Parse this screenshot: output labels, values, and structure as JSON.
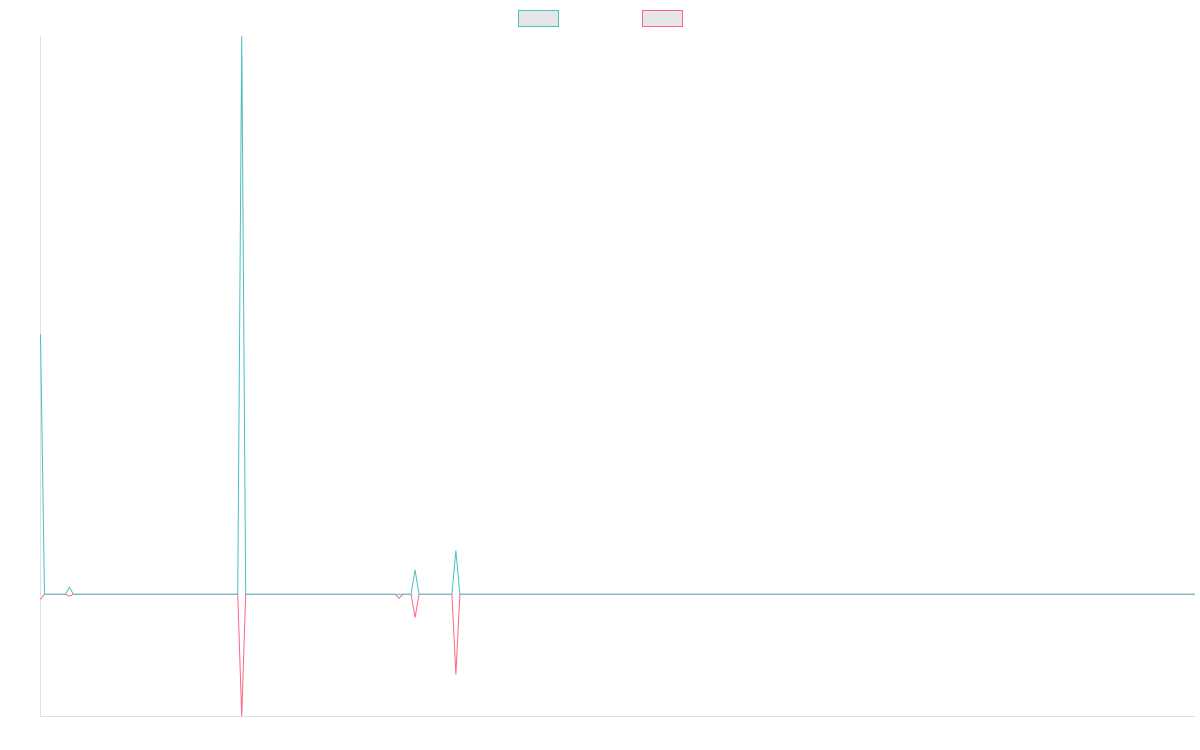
{
  "chart_data": {
    "type": "line",
    "title": "",
    "xlabel": "",
    "ylabel": "",
    "x_range": [
      0,
      1159
    ],
    "ylim": [
      -6,
      27.5
    ],
    "grid": false,
    "legend": {
      "placement": "top-center",
      "shows_labels": false
    },
    "x": [
      0,
      4,
      25,
      29,
      33,
      198,
      202,
      206,
      356,
      360,
      364,
      372,
      376,
      380,
      413,
      417,
      421,
      1159
    ],
    "series": [
      {
        "color": "#4bc0c0",
        "values": [
          12.8,
          0,
          0,
          0.35,
          0,
          0,
          27.5,
          0,
          0,
          0,
          0,
          0,
          1.2,
          0,
          0,
          2.15,
          0,
          0
        ]
      },
      {
        "color": "#ff6384",
        "values": [
          -0.25,
          0,
          0,
          -0.1,
          0,
          0,
          -6,
          0,
          0,
          -0.2,
          0,
          0,
          -1.15,
          0,
          0,
          -3.95,
          0,
          0
        ]
      }
    ]
  }
}
